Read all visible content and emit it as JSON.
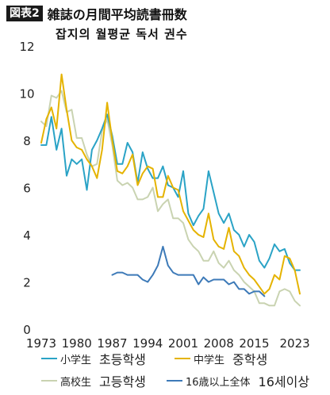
{
  "header": {
    "badge": "図表2",
    "title": "雑誌の月間平均読書冊数",
    "subtitle": "잡지의 월평균 독서 권수"
  },
  "chart_data": {
    "type": "line",
    "xlim": [
      1973,
      2024
    ],
    "ylim": [
      0,
      12
    ],
    "yticks": [
      0,
      2,
      4,
      6,
      8,
      10,
      12
    ],
    "xticks": [
      1973,
      1980,
      1987,
      1994,
      2001,
      2008,
      2015,
      2023
    ],
    "grid": false,
    "legend_position": "bottom",
    "series": [
      {
        "name": "小学生",
        "name_ko": "초등학생",
        "color": "#2aa3c6",
        "x": [
          1973,
          1974,
          1975,
          1976,
          1977,
          1978,
          1979,
          1980,
          1981,
          1982,
          1983,
          1984,
          1985,
          1986,
          1987,
          1988,
          1989,
          1990,
          1991,
          1992,
          1993,
          1994,
          1995,
          1996,
          1997,
          1998,
          1999,
          2000,
          2001,
          2002,
          2003,
          2004,
          2005,
          2006,
          2007,
          2008,
          2009,
          2010,
          2011,
          2012,
          2013,
          2014,
          2015,
          2016,
          2017,
          2018,
          2019,
          2020,
          2021,
          2022,
          2023,
          2024
        ],
        "values": [
          7.8,
          7.8,
          9.0,
          7.6,
          8.5,
          6.5,
          7.2,
          7.0,
          7.2,
          5.9,
          7.6,
          8.0,
          8.5,
          9.1,
          8.2,
          7.0,
          7.0,
          7.9,
          7.5,
          6.2,
          7.5,
          6.8,
          6.4,
          6.4,
          6.9,
          6.1,
          6.0,
          5.6,
          6.7,
          4.9,
          4.4,
          4.8,
          5.1,
          6.7,
          5.8,
          4.9,
          4.5,
          4.9,
          4.2,
          4.0,
          3.5,
          4.0,
          3.7,
          2.9,
          2.6,
          3.0,
          3.6,
          3.3,
          3.4,
          2.8,
          2.5,
          2.5
        ]
      },
      {
        "name": "中学生",
        "name_ko": "중학생",
        "color": "#e5b300",
        "x": [
          1973,
          1974,
          1975,
          1976,
          1977,
          1978,
          1979,
          1980,
          1981,
          1982,
          1983,
          1984,
          1985,
          1986,
          1987,
          1988,
          1989,
          1990,
          1991,
          1992,
          1993,
          1994,
          1995,
          1996,
          1997,
          1998,
          1999,
          2000,
          2001,
          2002,
          2003,
          2004,
          2005,
          2006,
          2007,
          2008,
          2009,
          2010,
          2011,
          2012,
          2013,
          2014,
          2015,
          2016,
          2017,
          2018,
          2019,
          2020,
          2021,
          2022,
          2023,
          2024
        ],
        "values": [
          7.9,
          8.9,
          9.4,
          8.5,
          10.8,
          9.3,
          8.0,
          7.7,
          7.6,
          7.2,
          6.9,
          6.4,
          7.6,
          9.6,
          8.0,
          6.7,
          6.6,
          6.9,
          7.4,
          6.1,
          6.6,
          6.9,
          6.8,
          5.6,
          5.6,
          6.5,
          6.0,
          5.9,
          5.0,
          4.6,
          4.2,
          4.0,
          3.9,
          4.9,
          3.8,
          3.5,
          3.4,
          4.3,
          3.3,
          3.1,
          2.6,
          2.3,
          2.1,
          1.8,
          1.5,
          1.7,
          2.3,
          2.1,
          3.1,
          3.0,
          2.5,
          1.5
        ]
      },
      {
        "name": "高校生",
        "name_ko": "고등학생",
        "color": "#c9d3b1",
        "x": [
          1973,
          1974,
          1975,
          1976,
          1977,
          1978,
          1979,
          1980,
          1981,
          1982,
          1983,
          1984,
          1985,
          1986,
          1987,
          1988,
          1989,
          1990,
          1991,
          1992,
          1993,
          1994,
          1995,
          1996,
          1997,
          1998,
          1999,
          2000,
          2001,
          2002,
          2003,
          2004,
          2005,
          2006,
          2007,
          2008,
          2009,
          2010,
          2011,
          2012,
          2013,
          2014,
          2015,
          2016,
          2017,
          2018,
          2019,
          2020,
          2021,
          2022,
          2023,
          2024
        ],
        "values": [
          8.8,
          8.6,
          9.9,
          9.8,
          10.1,
          9.2,
          9.3,
          8.1,
          8.1,
          7.4,
          6.9,
          7.0,
          8.4,
          8.9,
          7.8,
          6.3,
          6.1,
          6.2,
          6.0,
          5.5,
          5.5,
          5.6,
          6.0,
          5.0,
          5.3,
          5.5,
          4.7,
          4.7,
          4.5,
          3.8,
          3.5,
          3.3,
          2.9,
          2.9,
          3.3,
          2.8,
          2.6,
          2.9,
          2.5,
          2.3,
          2.0,
          1.8,
          1.6,
          1.1,
          1.1,
          1.0,
          1.0,
          1.6,
          1.7,
          1.6,
          1.2,
          1.0
        ]
      },
      {
        "name": "16歳以上全体",
        "name_ko": "16세이상",
        "color": "#3d7ab8",
        "x": [
          1987,
          1988,
          1989,
          1990,
          1991,
          1992,
          1993,
          1994,
          1995,
          1996,
          1997,
          1998,
          1999,
          2000,
          2001,
          2002,
          2003,
          2004,
          2005,
          2006,
          2007,
          2008,
          2009,
          2010,
          2011,
          2012,
          2013,
          2014,
          2015,
          2016,
          2017
        ],
        "values": [
          2.3,
          2.4,
          2.4,
          2.3,
          2.3,
          2.3,
          2.1,
          2.0,
          2.3,
          2.7,
          3.5,
          2.7,
          2.4,
          2.3,
          2.3,
          2.3,
          2.3,
          1.9,
          2.2,
          2.0,
          2.1,
          2.1,
          2.1,
          1.9,
          2.0,
          1.7,
          1.7,
          1.5,
          1.6,
          1.6,
          1.4
        ]
      }
    ]
  }
}
